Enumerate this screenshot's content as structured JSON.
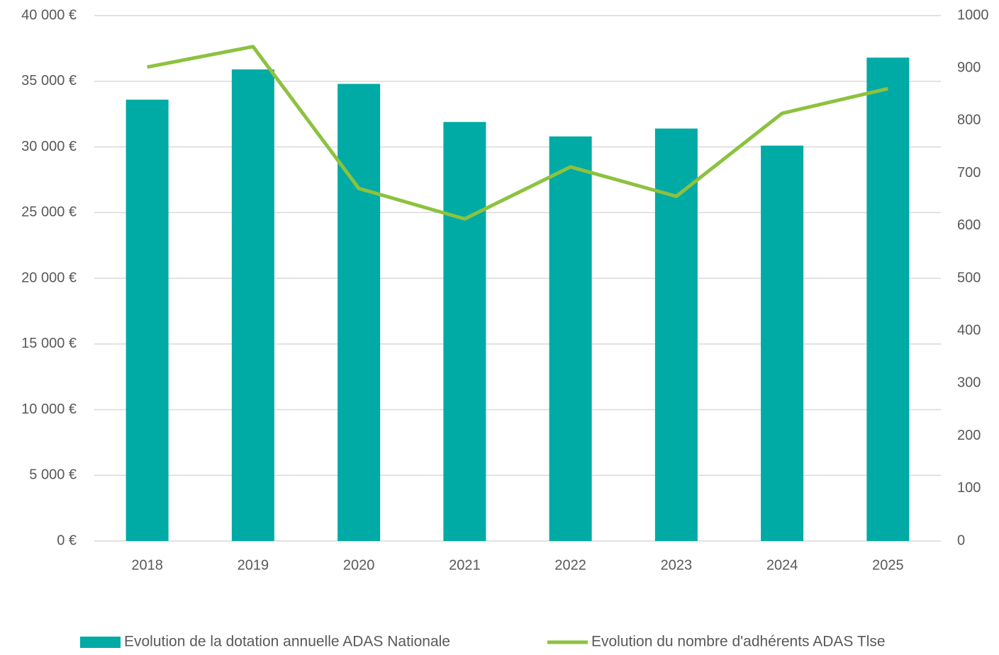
{
  "chart_data": {
    "type": "bar-line",
    "categories": [
      "2018",
      "2019",
      "2020",
      "2021",
      "2022",
      "2023",
      "2024",
      "2025"
    ],
    "series": [
      {
        "name": "Evolution de la dotation annuelle ADAS Nationale",
        "type": "bar",
        "color": "#00aaa5",
        "values": [
          33600,
          35900,
          34800,
          31900,
          30800,
          31400,
          30100,
          36800
        ]
      },
      {
        "name": "Evolution du nombre d'adhérents ADAS Tlse",
        "type": "line",
        "color": "#8cc23f",
        "axis": "y2",
        "values": [
          902,
          941,
          671,
          613,
          712,
          656,
          814,
          861
        ]
      }
    ],
    "ylim": [
      0,
      40000
    ],
    "yticks": [
      {
        "value": 0,
        "label": "0 €"
      },
      {
        "value": 5000,
        "label": "5 000 €"
      },
      {
        "value": 10000,
        "label": "10 000 €"
      },
      {
        "value": 15000,
        "label": "15 000 €"
      },
      {
        "value": 20000,
        "label": "20 000 €"
      },
      {
        "value": 25000,
        "label": "25 000 €"
      },
      {
        "value": 30000,
        "label": "30 000 €"
      },
      {
        "value": 35000,
        "label": "35 000 €"
      },
      {
        "value": 40000,
        "label": "40 000 €"
      }
    ],
    "y2lim": [
      0,
      1000
    ],
    "y2ticks": [
      0,
      100,
      200,
      300,
      400,
      500,
      600,
      700,
      800,
      900,
      1000
    ],
    "grid": true,
    "legend": "bottom"
  }
}
